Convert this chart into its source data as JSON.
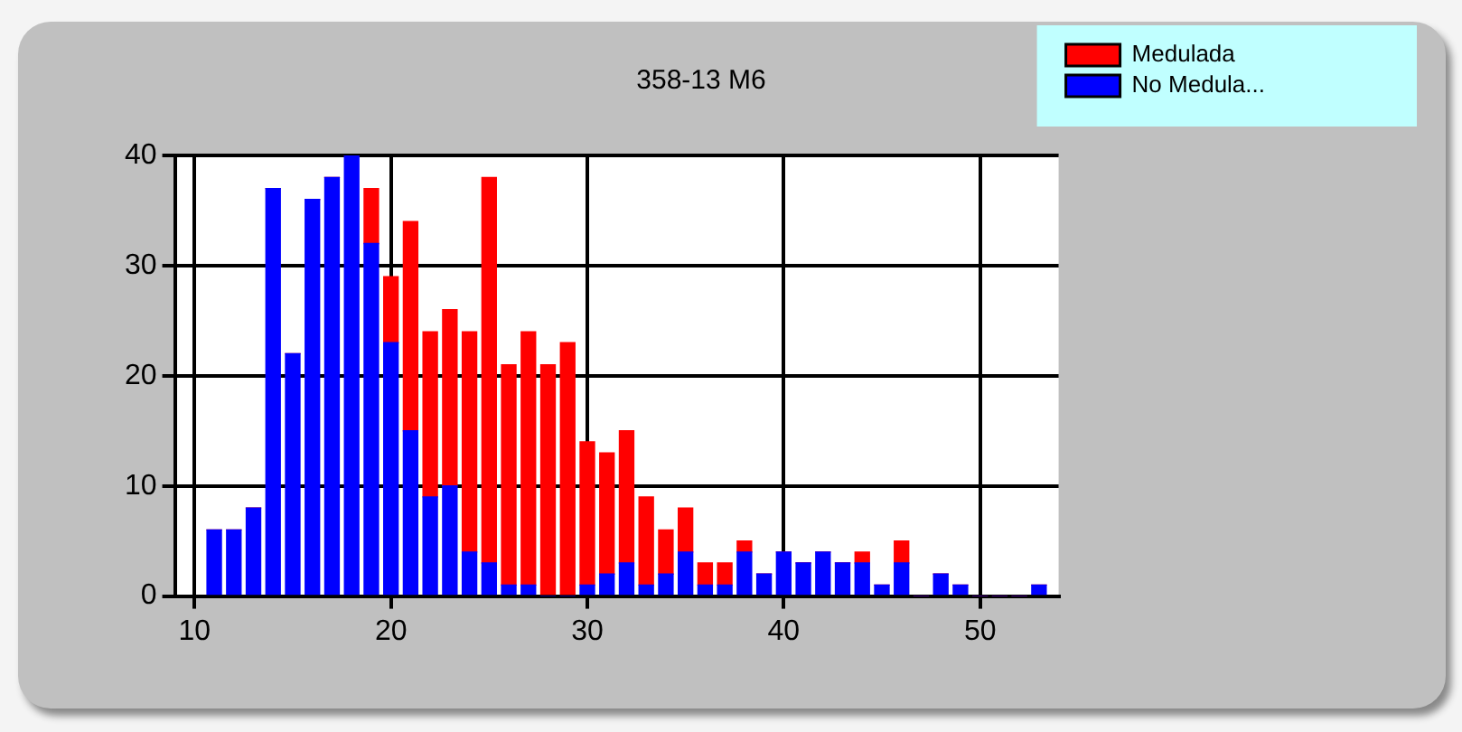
{
  "chart_data": {
    "type": "bar",
    "title": "358-13 M6",
    "stacked": true,
    "legend": "top right",
    "grid": true,
    "x": [
      11,
      12,
      13,
      14,
      15,
      16,
      17,
      18,
      19,
      20,
      21,
      22,
      23,
      24,
      25,
      26,
      27,
      28,
      29,
      30,
      31,
      32,
      33,
      34,
      35,
      36,
      37,
      38,
      39,
      40,
      41,
      42,
      43,
      44,
      45,
      46,
      47,
      48,
      49,
      50,
      51,
      52,
      53
    ],
    "series": [
      {
        "name": "No Medula...",
        "color": "#0000ff",
        "values": [
          6,
          6,
          8,
          37,
          22,
          36,
          38,
          40,
          32,
          23,
          15,
          9,
          10,
          4,
          3,
          1,
          1,
          0,
          0,
          1,
          2,
          3,
          1,
          2,
          4,
          1,
          1,
          4,
          2,
          4,
          3,
          4,
          3,
          3,
          1,
          3,
          0,
          2,
          1,
          0,
          0,
          0,
          1
        ]
      },
      {
        "name": "Medulada",
        "color": "#ff0000",
        "values": [
          0,
          0,
          0,
          0,
          0,
          0,
          0,
          0,
          5,
          6,
          19,
          15,
          16,
          20,
          35,
          20,
          23,
          21,
          23,
          13,
          11,
          12,
          8,
          4,
          4,
          2,
          2,
          1,
          0,
          0,
          0,
          0,
          0,
          1,
          0,
          2,
          0,
          0,
          0,
          0,
          0,
          0,
          0
        ]
      }
    ],
    "xlim": [
      9,
      54
    ],
    "xticks": [
      10,
      20,
      30,
      40,
      50
    ],
    "ylim": [
      0,
      40
    ],
    "yticks": [
      0,
      10,
      20,
      30,
      40
    ]
  }
}
